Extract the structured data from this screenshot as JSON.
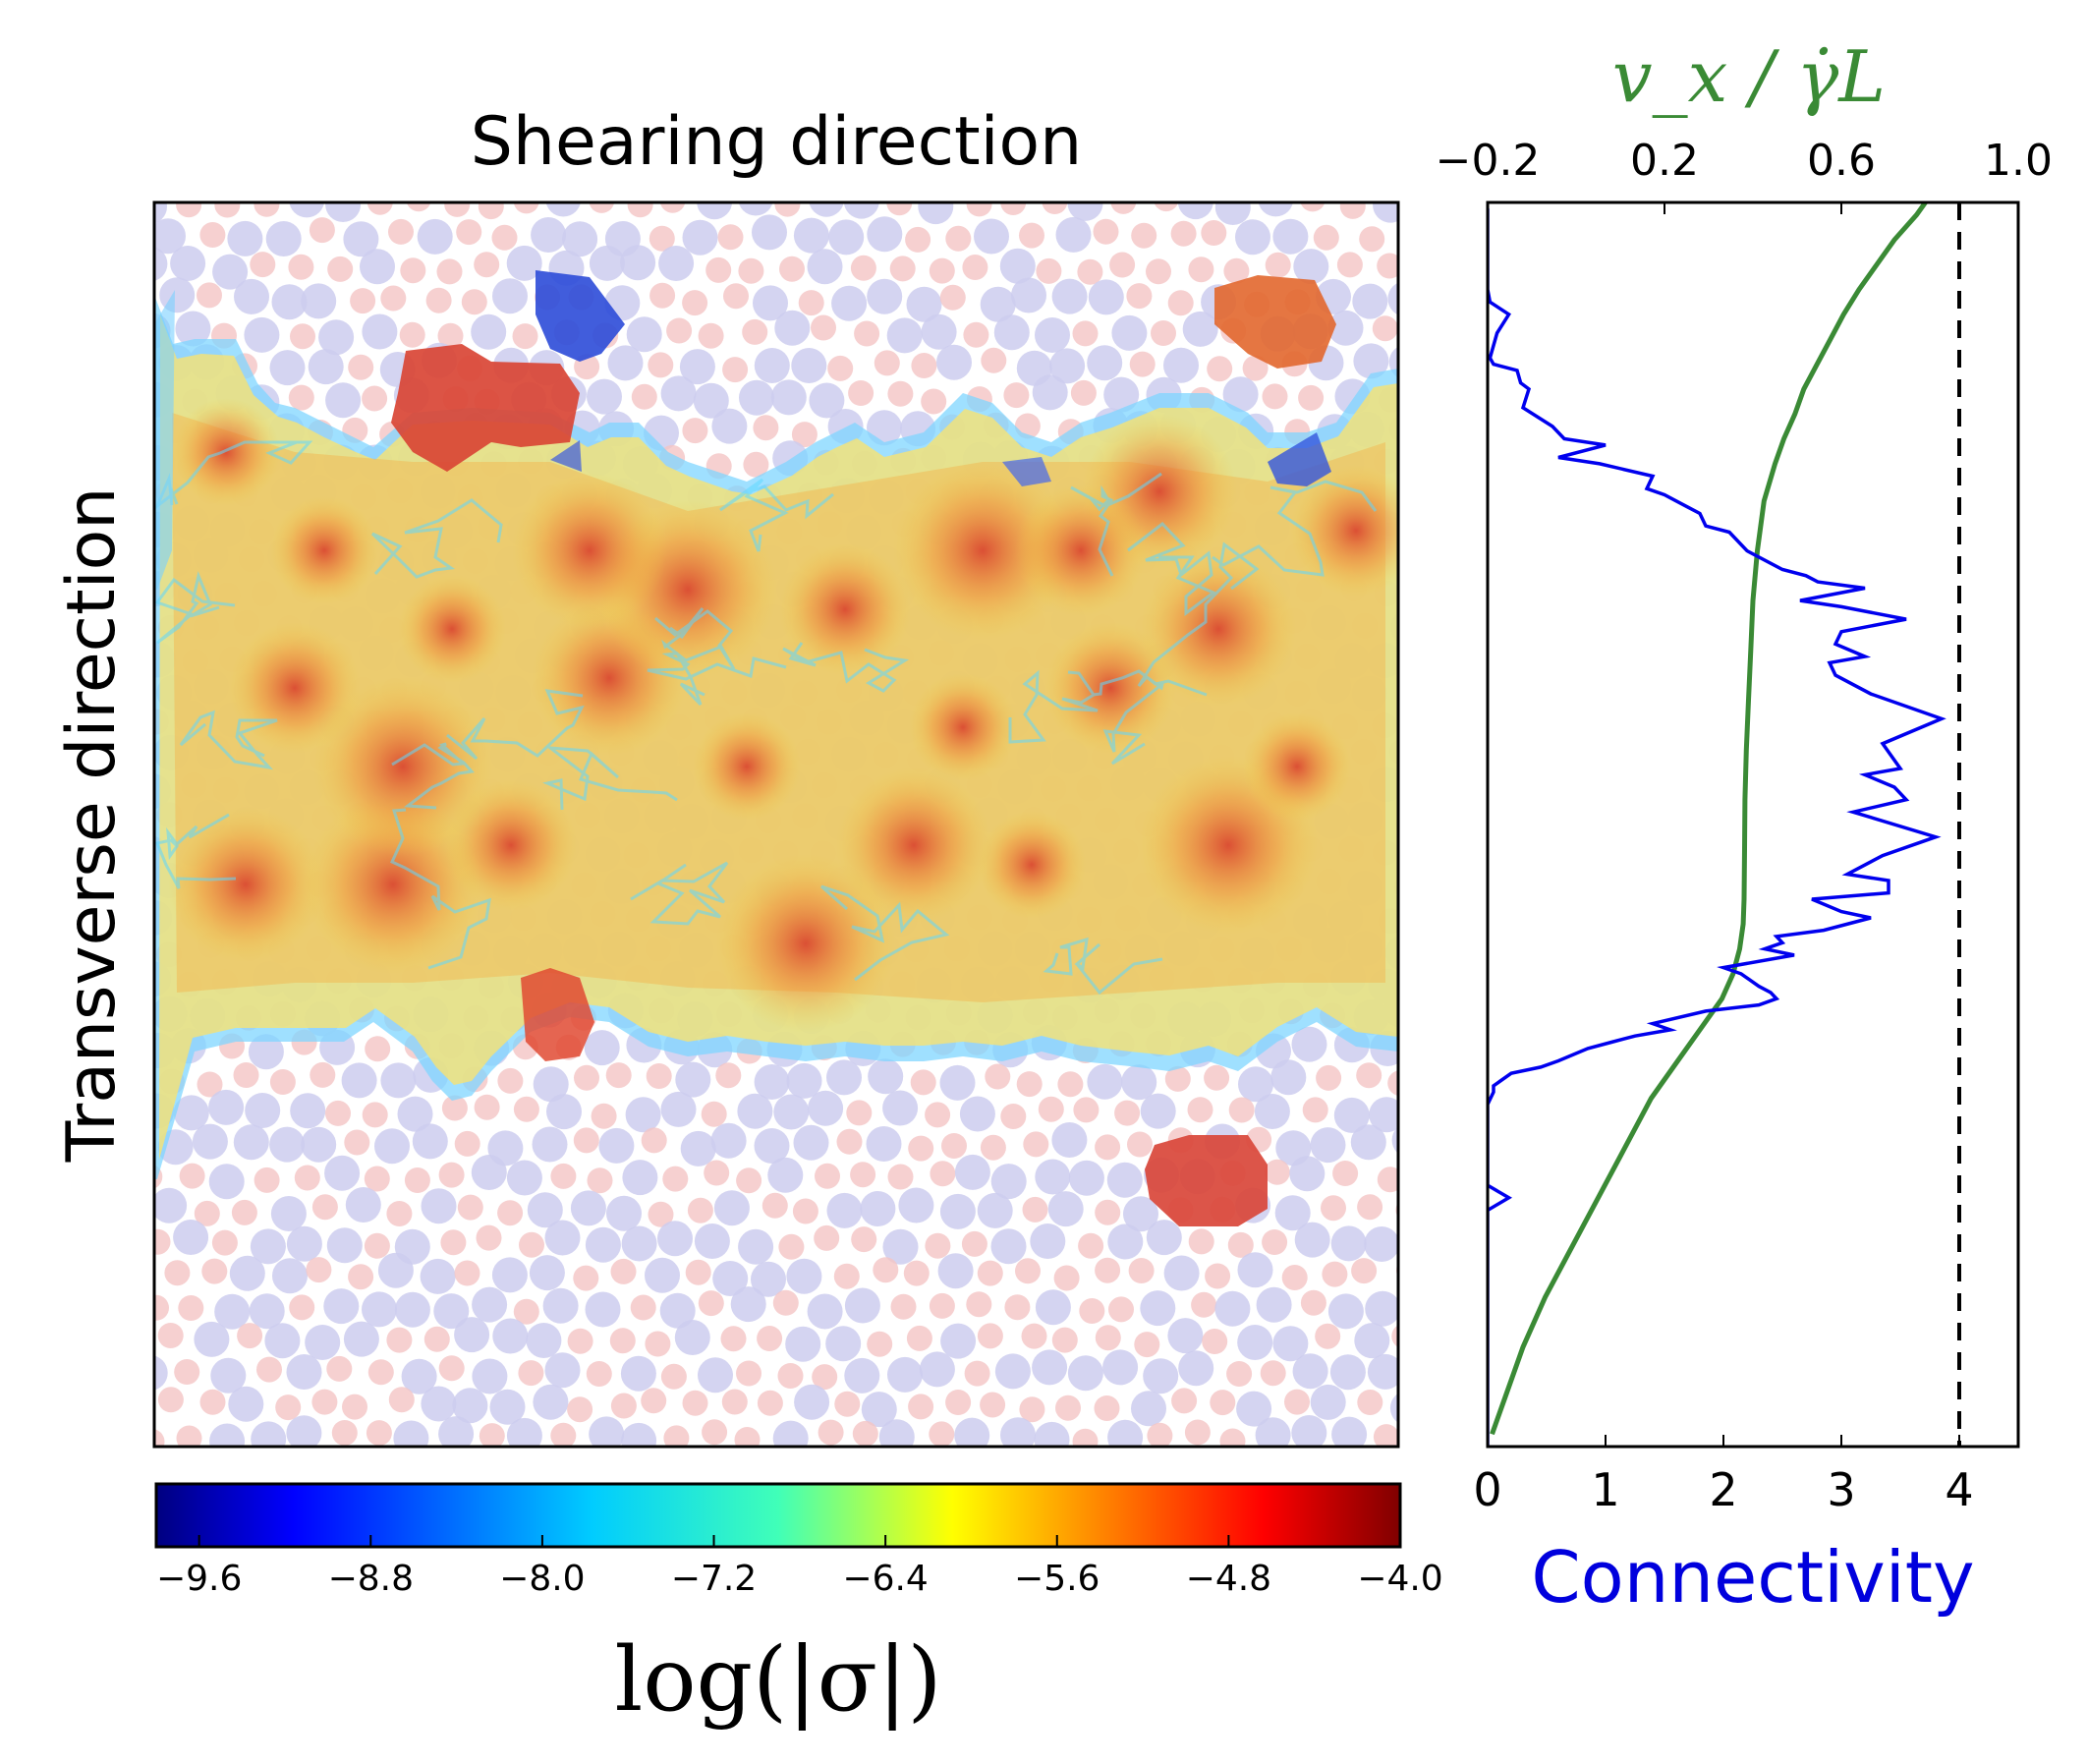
{
  "chart_data": [
    {
      "type": "heatmap",
      "title": "Shearing direction",
      "ylabel": "Transverse direction",
      "colorbar": {
        "label": "log(|σ|)",
        "range": [
          -9.8,
          -4.0
        ],
        "ticks": [
          -9.6,
          -8.8,
          -8.0,
          -7.2,
          -6.4,
          -5.6,
          -4.8,
          -4.0
        ],
        "tick_labels": [
          "−9.6",
          "−8.8",
          "−8.0",
          "−7.2",
          "−6.4",
          "−5.6",
          "−4.8",
          "−4.0"
        ],
        "colormap": "jet"
      },
      "particle_colors": {
        "large": "#ccccee",
        "small": "#f4c4c4"
      }
    },
    {
      "type": "line",
      "xlabel": "Connectivity",
      "x_top_label": "v_x / γ̇L",
      "xlim": [
        0,
        4.5
      ],
      "xticks": [
        0,
        1,
        2,
        3,
        4
      ],
      "xtick_labels": [
        "0",
        "1",
        "2",
        "3",
        "4"
      ],
      "x_top_lim": [
        -0.2,
        1.0
      ],
      "x_top_ticks": [
        -0.2,
        0.2,
        0.6,
        1.0
      ],
      "x_top_tick_labels": [
        "−0.2",
        "0.2",
        "0.6",
        "1.0"
      ],
      "ylim": [
        0,
        1
      ],
      "reference_line": {
        "x": 4,
        "style": "dashed",
        "color": "#000000"
      },
      "series": [
        {
          "color": "#0000ee",
          "axis": "bottom",
          "points": [
            [
              0.0,
              0.995
            ],
            [
              0.0,
              0.93
            ],
            [
              0.02,
              0.92
            ],
            [
              0.18,
              0.91
            ],
            [
              0.08,
              0.895
            ],
            [
              0.02,
              0.875
            ],
            [
              0.05,
              0.87
            ],
            [
              0.25,
              0.865
            ],
            [
              0.28,
              0.855
            ],
            [
              0.35,
              0.85
            ],
            [
              0.3,
              0.835
            ],
            [
              0.55,
              0.82
            ],
            [
              0.65,
              0.81
            ],
            [
              1.0,
              0.805
            ],
            [
              0.6,
              0.795
            ],
            [
              0.95,
              0.79
            ],
            [
              1.4,
              0.78
            ],
            [
              1.35,
              0.77
            ],
            [
              1.5,
              0.765
            ],
            [
              1.7,
              0.755
            ],
            [
              1.8,
              0.75
            ],
            [
              1.85,
              0.74
            ],
            [
              2.05,
              0.735
            ],
            [
              2.2,
              0.72
            ],
            [
              2.5,
              0.705
            ],
            [
              2.7,
              0.7
            ],
            [
              2.8,
              0.695
            ],
            [
              3.2,
              0.69
            ],
            [
              2.65,
              0.68
            ],
            [
              3.0,
              0.675
            ],
            [
              3.55,
              0.665
            ],
            [
              3.0,
              0.655
            ],
            [
              2.95,
              0.645
            ],
            [
              3.2,
              0.635
            ],
            [
              2.9,
              0.63
            ],
            [
              2.95,
              0.62
            ],
            [
              3.25,
              0.605
            ],
            [
              3.85,
              0.585
            ],
            [
              3.35,
              0.565
            ],
            [
              3.5,
              0.545
            ],
            [
              3.2,
              0.54
            ],
            [
              3.45,
              0.53
            ],
            [
              3.55,
              0.52
            ],
            [
              3.1,
              0.51
            ],
            [
              3.8,
              0.49
            ],
            [
              3.35,
              0.475
            ],
            [
              3.05,
              0.46
            ],
            [
              3.4,
              0.455
            ],
            [
              3.4,
              0.445
            ],
            [
              2.75,
              0.44
            ],
            [
              3.0,
              0.43
            ],
            [
              3.25,
              0.425
            ],
            [
              2.85,
              0.415
            ],
            [
              2.45,
              0.41
            ],
            [
              2.5,
              0.405
            ],
            [
              2.35,
              0.4
            ],
            [
              2.6,
              0.395
            ],
            [
              2.0,
              0.385
            ],
            [
              2.15,
              0.38
            ],
            [
              2.3,
              0.37
            ],
            [
              2.4,
              0.365
            ],
            [
              2.45,
              0.36
            ],
            [
              2.3,
              0.355
            ],
            [
              1.85,
              0.35
            ],
            [
              1.4,
              0.34
            ],
            [
              1.55,
              0.335
            ],
            [
              1.25,
              0.33
            ],
            [
              1.05,
              0.325
            ],
            [
              0.85,
              0.32
            ],
            [
              0.6,
              0.31
            ],
            [
              0.45,
              0.305
            ],
            [
              0.2,
              0.3
            ],
            [
              0.05,
              0.29
            ],
            [
              0.05,
              0.285
            ],
            [
              0.0,
              0.275
            ],
            [
              0.0,
              0.22
            ],
            [
              0.0,
              0.21
            ],
            [
              0.18,
              0.2
            ],
            [
              0.0,
              0.19
            ],
            [
              0.0,
              0.0
            ]
          ]
        },
        {
          "color": "#3a8a35",
          "axis": "top",
          "points": [
            [
              -0.19,
              0.01
            ],
            [
              -0.16,
              0.04
            ],
            [
              -0.12,
              0.08
            ],
            [
              -0.07,
              0.12
            ],
            [
              -0.01,
              0.16
            ],
            [
              0.05,
              0.2
            ],
            [
              0.11,
              0.24
            ],
            [
              0.17,
              0.28
            ],
            [
              0.23,
              0.31
            ],
            [
              0.29,
              0.34
            ],
            [
              0.33,
              0.36
            ],
            [
              0.355,
              0.38
            ],
            [
              0.37,
              0.4
            ],
            [
              0.378,
              0.42
            ],
            [
              0.38,
              0.44
            ],
            [
              0.381,
              0.48
            ],
            [
              0.382,
              0.52
            ],
            [
              0.385,
              0.56
            ],
            [
              0.39,
              0.6
            ],
            [
              0.395,
              0.64
            ],
            [
              0.4,
              0.68
            ],
            [
              0.41,
              0.72
            ],
            [
              0.425,
              0.76
            ],
            [
              0.45,
              0.79
            ],
            [
              0.47,
              0.81
            ],
            [
              0.495,
              0.83
            ],
            [
              0.515,
              0.85
            ],
            [
              0.545,
              0.87
            ],
            [
              0.575,
              0.89
            ],
            [
              0.605,
              0.91
            ],
            [
              0.64,
              0.93
            ],
            [
              0.68,
              0.95
            ],
            [
              0.72,
              0.97
            ],
            [
              0.77,
              0.99
            ],
            [
              0.79,
              1.0
            ]
          ]
        }
      ]
    }
  ]
}
